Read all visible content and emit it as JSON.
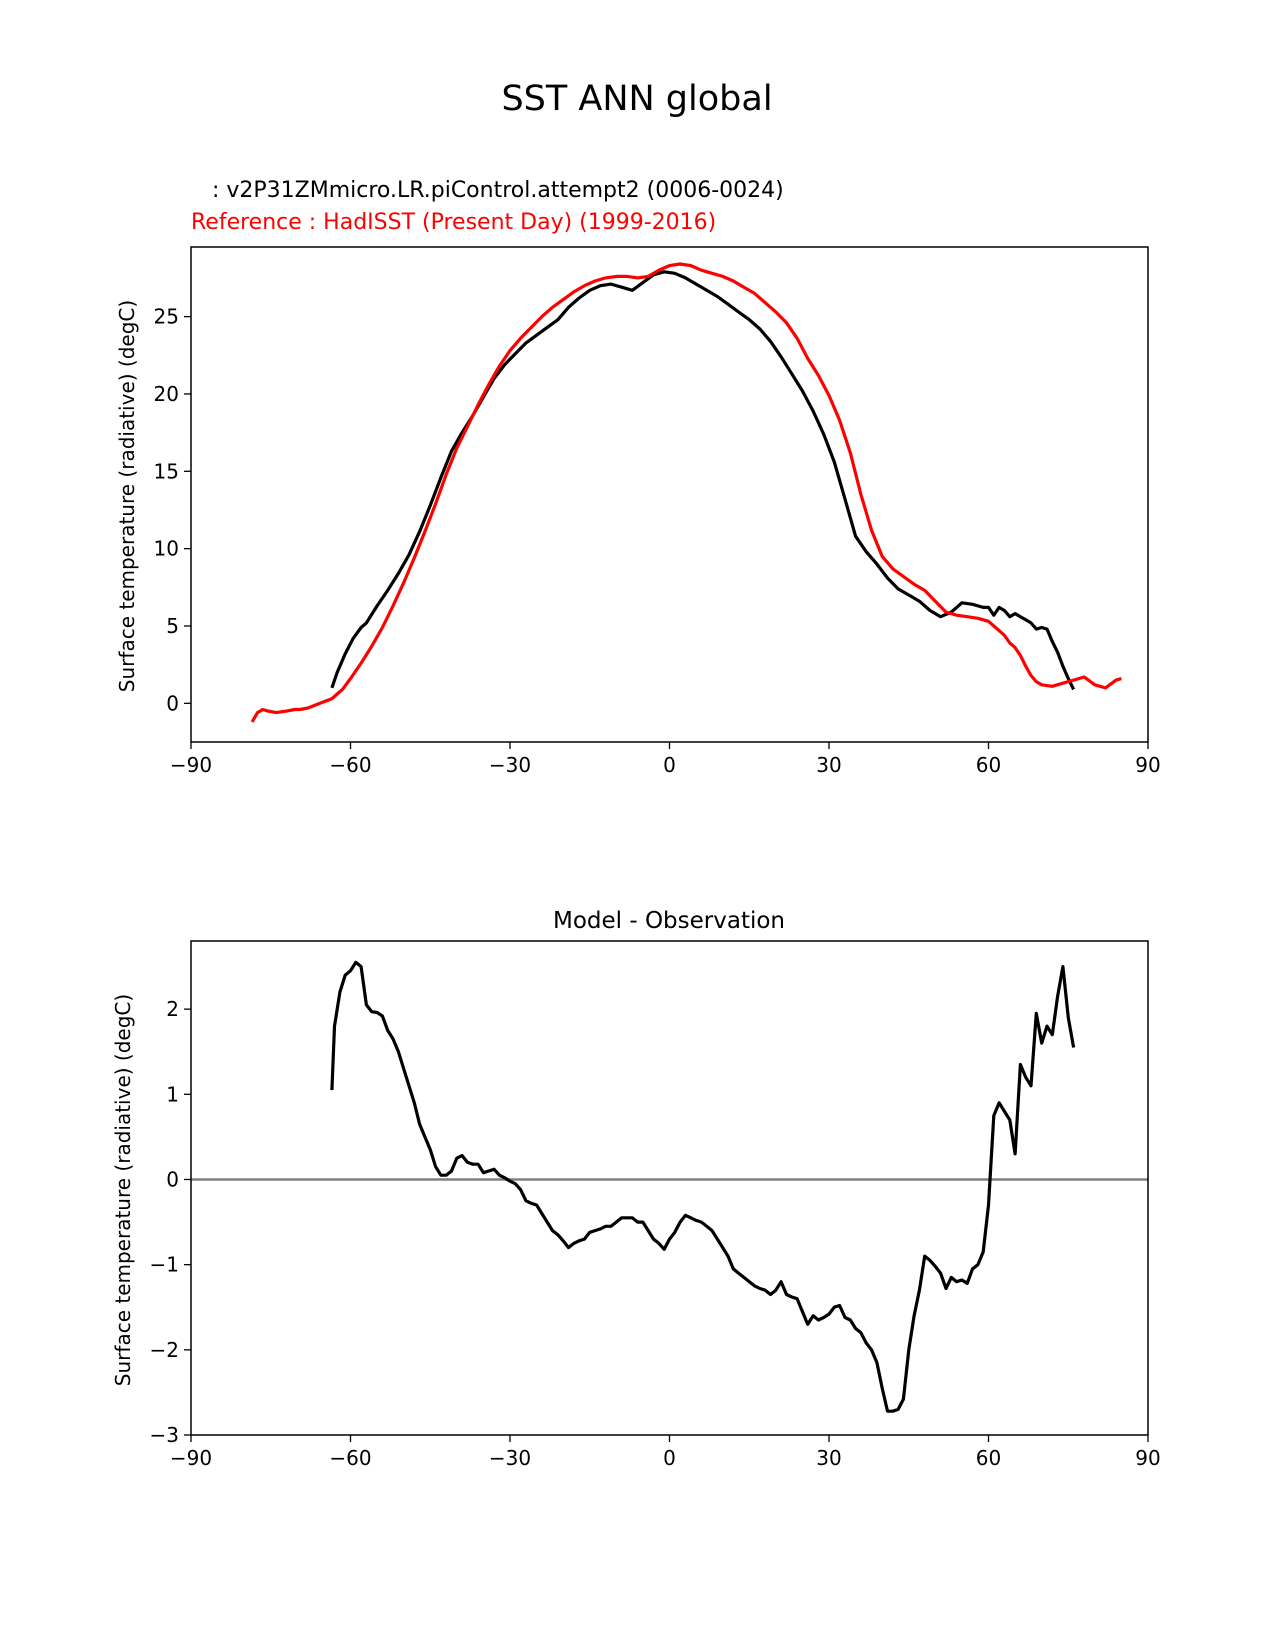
{
  "figure": {
    "title": "SST ANN global"
  },
  "chart_data": [
    {
      "type": "line",
      "test_label": " : v2P31ZMmicro.LR.piControl.attempt2 (0006-0024)",
      "ref_label": "Reference : HadISST (Present Day) (1999-2016)",
      "xlabel": "",
      "ylabel": "Surface temperature (radiative) (degC)",
      "xlim": [
        -90,
        90
      ],
      "ylim": [
        -2.5,
        29.5
      ],
      "xticks": [
        -90,
        -60,
        -30,
        0,
        30,
        60,
        90
      ],
      "xtick_labels": [
        "−90",
        "−60",
        "−30",
        "0",
        "30",
        "60",
        "90"
      ],
      "yticks": [
        0,
        5,
        10,
        15,
        20,
        25
      ],
      "ytick_labels": [
        "0",
        "5",
        "10",
        "15",
        "20",
        "25"
      ],
      "grid": false,
      "series": [
        {
          "color": "#000000",
          "x": [
            -63.5,
            -62.5,
            -61,
            -59.5,
            -58,
            -57,
            -55,
            -53,
            -51,
            -49,
            -47,
            -45,
            -43,
            -41,
            -39,
            -37,
            -35,
            -33,
            -31,
            -29,
            -27,
            -25,
            -23,
            -21,
            -19,
            -17,
            -15,
            -13,
            -11,
            -9,
            -7,
            -5,
            -3,
            -1,
            1,
            3,
            5,
            7,
            9,
            11,
            13,
            15,
            17,
            19,
            21,
            23,
            25,
            27,
            29,
            31,
            33,
            35,
            37,
            39,
            41,
            43,
            45,
            47,
            49,
            51,
            53,
            55,
            57,
            59,
            60,
            61,
            62,
            63,
            64,
            65,
            66,
            67,
            68,
            69,
            70,
            71,
            72,
            73,
            74,
            75,
            76
          ],
          "y": [
            1.0,
            2.0,
            3.2,
            4.2,
            4.9,
            5.2,
            6.3,
            7.3,
            8.4,
            9.6,
            11.1,
            12.8,
            14.6,
            16.3,
            17.5,
            18.6,
            19.8,
            21.0,
            21.9,
            22.6,
            23.3,
            23.8,
            24.3,
            24.8,
            25.6,
            26.2,
            26.7,
            27.0,
            27.1,
            26.9,
            26.7,
            27.2,
            27.7,
            27.9,
            27.8,
            27.5,
            27.1,
            26.7,
            26.3,
            25.8,
            25.3,
            24.8,
            24.2,
            23.4,
            22.4,
            21.3,
            20.2,
            18.9,
            17.4,
            15.6,
            13.2,
            10.8,
            9.8,
            9.0,
            8.1,
            7.4,
            7.0,
            6.6,
            6.0,
            5.6,
            5.9,
            6.5,
            6.4,
            6.2,
            6.2,
            5.7,
            6.2,
            6.0,
            5.6,
            5.8,
            5.6,
            5.4,
            5.2,
            4.8,
            4.9,
            4.8,
            4.0,
            3.3,
            2.4,
            1.6,
            0.9
          ]
        },
        {
          "color": "#ff0000",
          "x": [
            -78.5,
            -77.5,
            -76.5,
            -75.5,
            -74,
            -72,
            -70.5,
            -69.5,
            -68,
            -66.5,
            -65,
            -63.5,
            -62.5,
            -61.5,
            -60,
            -58,
            -56,
            -54,
            -52,
            -50,
            -48,
            -46,
            -44,
            -42,
            -40,
            -38,
            -36,
            -34,
            -32,
            -30,
            -28,
            -26,
            -24,
            -22,
            -20,
            -18,
            -16,
            -14,
            -12,
            -10,
            -8,
            -6,
            -4,
            -2,
            0,
            2,
            4,
            6,
            8,
            10,
            12,
            14,
            16,
            18,
            20,
            22,
            24,
            26,
            28,
            30,
            32,
            34,
            36,
            38,
            40,
            42,
            44,
            46,
            48,
            50,
            52,
            54,
            56,
            58,
            60,
            61,
            62,
            63,
            64,
            65,
            66,
            67,
            68,
            69,
            70,
            72,
            74,
            76,
            78,
            80,
            82,
            84,
            85
          ],
          "y": [
            -1.2,
            -0.6,
            -0.4,
            -0.5,
            -0.6,
            -0.5,
            -0.4,
            -0.4,
            -0.3,
            -0.1,
            0.1,
            0.3,
            0.6,
            0.9,
            1.6,
            2.6,
            3.7,
            4.9,
            6.3,
            7.8,
            9.4,
            11.1,
            12.9,
            14.8,
            16.5,
            17.9,
            19.3,
            20.6,
            21.8,
            22.8,
            23.6,
            24.3,
            25.0,
            25.6,
            26.1,
            26.6,
            27.0,
            27.3,
            27.5,
            27.6,
            27.6,
            27.5,
            27.6,
            28.0,
            28.3,
            28.4,
            28.3,
            28.0,
            27.8,
            27.6,
            27.3,
            26.9,
            26.5,
            25.9,
            25.3,
            24.6,
            23.6,
            22.3,
            21.2,
            19.9,
            18.3,
            16.2,
            13.5,
            11.2,
            9.5,
            8.7,
            8.2,
            7.7,
            7.3,
            6.6,
            5.9,
            5.7,
            5.6,
            5.5,
            5.3,
            5.0,
            4.7,
            4.4,
            3.9,
            3.6,
            3.1,
            2.4,
            1.8,
            1.4,
            1.2,
            1.1,
            1.3,
            1.5,
            1.7,
            1.2,
            1.0,
            1.5,
            1.6
          ]
        }
      ]
    },
    {
      "type": "line",
      "title": "Model - Observation",
      "xlabel": "",
      "ylabel": "Surface temperature (radiative) (degC)",
      "xlim": [
        -90,
        90
      ],
      "ylim": [
        -3,
        2.8
      ],
      "xticks": [
        -90,
        -60,
        -30,
        0,
        30,
        60,
        90
      ],
      "xtick_labels": [
        "−90",
        "−60",
        "−30",
        "0",
        "30",
        "60",
        "90"
      ],
      "yticks": [
        -3,
        -2,
        -1,
        0,
        1,
        2
      ],
      "ytick_labels": [
        "−3",
        "−2",
        "−1",
        "0",
        "1",
        "2"
      ],
      "grid": false,
      "zero_line": 0,
      "series": [
        {
          "color": "#000000",
          "x": [
            -63.5,
            -63,
            -62,
            -61,
            -60,
            -59,
            -58,
            -57,
            -56,
            -55,
            -54,
            -53,
            -52,
            -51,
            -50,
            -49,
            -48,
            -47,
            -46,
            -45,
            -44,
            -43,
            -42,
            -41,
            -40,
            -39,
            -38,
            -37,
            -36,
            -35,
            -34,
            -33,
            -32,
            -31,
            -30,
            -29,
            -28,
            -27,
            -26,
            -25,
            -24,
            -23,
            -22,
            -21,
            -20,
            -19,
            -18,
            -17,
            -16,
            -15,
            -14,
            -13,
            -12,
            -11,
            -10,
            -9,
            -8,
            -7,
            -6,
            -5,
            -4,
            -3,
            -2,
            -1,
            0,
            1,
            2,
            3,
            4,
            5,
            6,
            7,
            8,
            9,
            10,
            11,
            12,
            13,
            14,
            15,
            16,
            17,
            18,
            19,
            20,
            21,
            22,
            23,
            24,
            25,
            26,
            27,
            28,
            29,
            30,
            31,
            32,
            33,
            34,
            35,
            36,
            37,
            38,
            39,
            40,
            41,
            42,
            43,
            44,
            45,
            46,
            47,
            48,
            49,
            50,
            51,
            52,
            53,
            54,
            55,
            56,
            57,
            58,
            59,
            60,
            61,
            62,
            63,
            64,
            65,
            66,
            67,
            68,
            69,
            70,
            71,
            72,
            73,
            74,
            75,
            76
          ],
          "y": [
            1.05,
            1.8,
            2.2,
            2.4,
            2.45,
            2.55,
            2.5,
            2.05,
            1.97,
            1.96,
            1.92,
            1.75,
            1.65,
            1.5,
            1.3,
            1.1,
            0.9,
            0.65,
            0.5,
            0.35,
            0.15,
            0.05,
            0.05,
            0.1,
            0.25,
            0.28,
            0.2,
            0.18,
            0.18,
            0.08,
            0.1,
            0.12,
            0.05,
            0.02,
            -0.02,
            -0.05,
            -0.12,
            -0.25,
            -0.28,
            -0.3,
            -0.4,
            -0.5,
            -0.6,
            -0.65,
            -0.72,
            -0.8,
            -0.75,
            -0.72,
            -0.7,
            -0.62,
            -0.6,
            -0.58,
            -0.55,
            -0.55,
            -0.5,
            -0.45,
            -0.45,
            -0.45,
            -0.5,
            -0.5,
            -0.6,
            -0.7,
            -0.75,
            -0.82,
            -0.7,
            -0.62,
            -0.5,
            -0.42,
            -0.45,
            -0.48,
            -0.5,
            -0.55,
            -0.6,
            -0.7,
            -0.8,
            -0.9,
            -1.05,
            -1.1,
            -1.15,
            -1.2,
            -1.25,
            -1.28,
            -1.3,
            -1.35,
            -1.3,
            -1.2,
            -1.35,
            -1.38,
            -1.4,
            -1.55,
            -1.7,
            -1.6,
            -1.65,
            -1.62,
            -1.58,
            -1.5,
            -1.48,
            -1.62,
            -1.65,
            -1.75,
            -1.8,
            -1.92,
            -2.0,
            -2.15,
            -2.45,
            -2.72,
            -2.72,
            -2.7,
            -2.58,
            -2.0,
            -1.6,
            -1.3,
            -0.9,
            -0.95,
            -1.02,
            -1.1,
            -1.28,
            -1.15,
            -1.2,
            -1.18,
            -1.22,
            -1.05,
            -1.0,
            -0.85,
            -0.3,
            0.75,
            0.9,
            0.8,
            0.7,
            0.3,
            1.35,
            1.2,
            1.1,
            1.95,
            1.6,
            1.8,
            1.7,
            2.15,
            2.5,
            1.9,
            1.55
          ]
        }
      ]
    }
  ]
}
